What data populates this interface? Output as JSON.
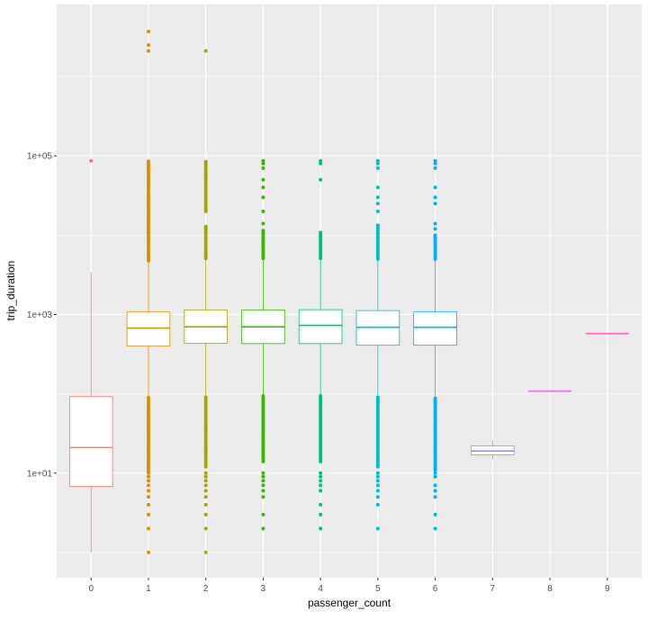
{
  "chart_data": {
    "type": "boxplot",
    "title": "",
    "xlabel": "passenger_count",
    "ylabel": "trip_duration",
    "y_scale": "log10",
    "ylim": [
      0.48,
      8100000
    ],
    "y_ticks": [
      {
        "value": 10,
        "label": "1e+01"
      },
      {
        "value": 1000,
        "label": "1e+03"
      },
      {
        "value": 100000,
        "label": "1e+05"
      }
    ],
    "y_minor_gridlines": [
      1,
      100,
      10000,
      1000000
    ],
    "grid": true,
    "background": "#EBEBEB",
    "categories": [
      "0",
      "1",
      "2",
      "3",
      "4",
      "5",
      "6",
      "7",
      "8",
      "9"
    ],
    "boxes": [
      {
        "category": "0",
        "color": "#F8766D",
        "whisker_low": 1,
        "q1": 6.8,
        "median": 21,
        "q3": 92,
        "whisker_high": 3400,
        "outlier_bands": [],
        "outliers": [
          86400
        ]
      },
      {
        "category": "1",
        "color": "#D89000",
        "whisker_low": 90,
        "q1": 400,
        "median": 675,
        "q3": 1075,
        "whisker_high": 4800,
        "outlier_bands": [
          [
            4800,
            86400
          ],
          [
            10,
            90
          ]
        ],
        "outliers": [
          3700000,
          2500000,
          2100000,
          9,
          8,
          7,
          6,
          5,
          4,
          3,
          2,
          1
        ]
      },
      {
        "category": "2",
        "color": "#A3A500",
        "whisker_low": 95,
        "q1": 435,
        "median": 700,
        "q3": 1140,
        "whisker_high": 5100,
        "outlier_bands": [
          [
            5100,
            13000
          ],
          [
            20000,
            86400
          ],
          [
            12,
            95
          ]
        ],
        "outliers": [
          2100000,
          10,
          9,
          8,
          7,
          6,
          5,
          4,
          3,
          2,
          1
        ]
      },
      {
        "category": "3",
        "color": "#39B600",
        "whisker_low": 95,
        "q1": 430,
        "median": 700,
        "q3": 1140,
        "whisker_high": 5100,
        "outlier_bands": [
          [
            5100,
            12000
          ],
          [
            14,
            95
          ]
        ],
        "outliers": [
          86400,
          80000,
          70000,
          50000,
          40000,
          30000,
          20000,
          14000,
          10,
          9,
          8,
          7,
          6,
          5,
          3,
          2
        ]
      },
      {
        "category": "4",
        "color": "#00BF7D",
        "whisker_low": 95,
        "q1": 430,
        "median": 730,
        "q3": 1150,
        "whisker_high": 5100,
        "outlier_bands": [
          [
            5100,
            11000
          ],
          [
            14,
            95
          ]
        ],
        "outliers": [
          86400,
          80000,
          50000,
          10,
          9,
          8,
          7,
          6,
          4,
          3,
          2
        ]
      },
      {
        "category": "5",
        "color": "#00BFC4",
        "whisker_low": 90,
        "q1": 410,
        "median": 690,
        "q3": 1120,
        "whisker_high": 5000,
        "outlier_bands": [
          [
            5000,
            14000
          ],
          [
            12,
            90
          ]
        ],
        "outliers": [
          86400,
          80000,
          70000,
          40000,
          30000,
          25000,
          20000,
          10,
          9,
          8,
          7,
          6,
          5,
          4,
          2
        ]
      },
      {
        "category": "6",
        "color": "#00B0F6",
        "whisker_low": 90,
        "q1": 410,
        "median": 690,
        "q3": 1075,
        "whisker_high": 5000,
        "outlier_bands": [
          [
            5000,
            10000
          ],
          [
            11,
            90
          ]
        ],
        "outliers": [
          86400,
          80000,
          70000,
          40000,
          30000,
          25000,
          14000,
          12000,
          10,
          9,
          7,
          6,
          5,
          3,
          2
        ]
      },
      {
        "category": "7",
        "color": "#9590FF",
        "whisker_low": 15,
        "q1": 17,
        "median": 19,
        "q3": 22,
        "whisker_high": 26,
        "outlier_bands": [],
        "outliers": []
      },
      {
        "category": "8",
        "color": "#E76BF3",
        "whisker_low": 108,
        "q1": 108,
        "median": 108,
        "q3": 108,
        "whisker_high": 108,
        "outlier_bands": [],
        "outliers": []
      },
      {
        "category": "9",
        "color": "#FF62BC",
        "whisker_low": 575,
        "q1": 575,
        "median": 575,
        "q3": 575,
        "whisker_high": 575,
        "outlier_bands": [],
        "outliers": []
      }
    ]
  }
}
